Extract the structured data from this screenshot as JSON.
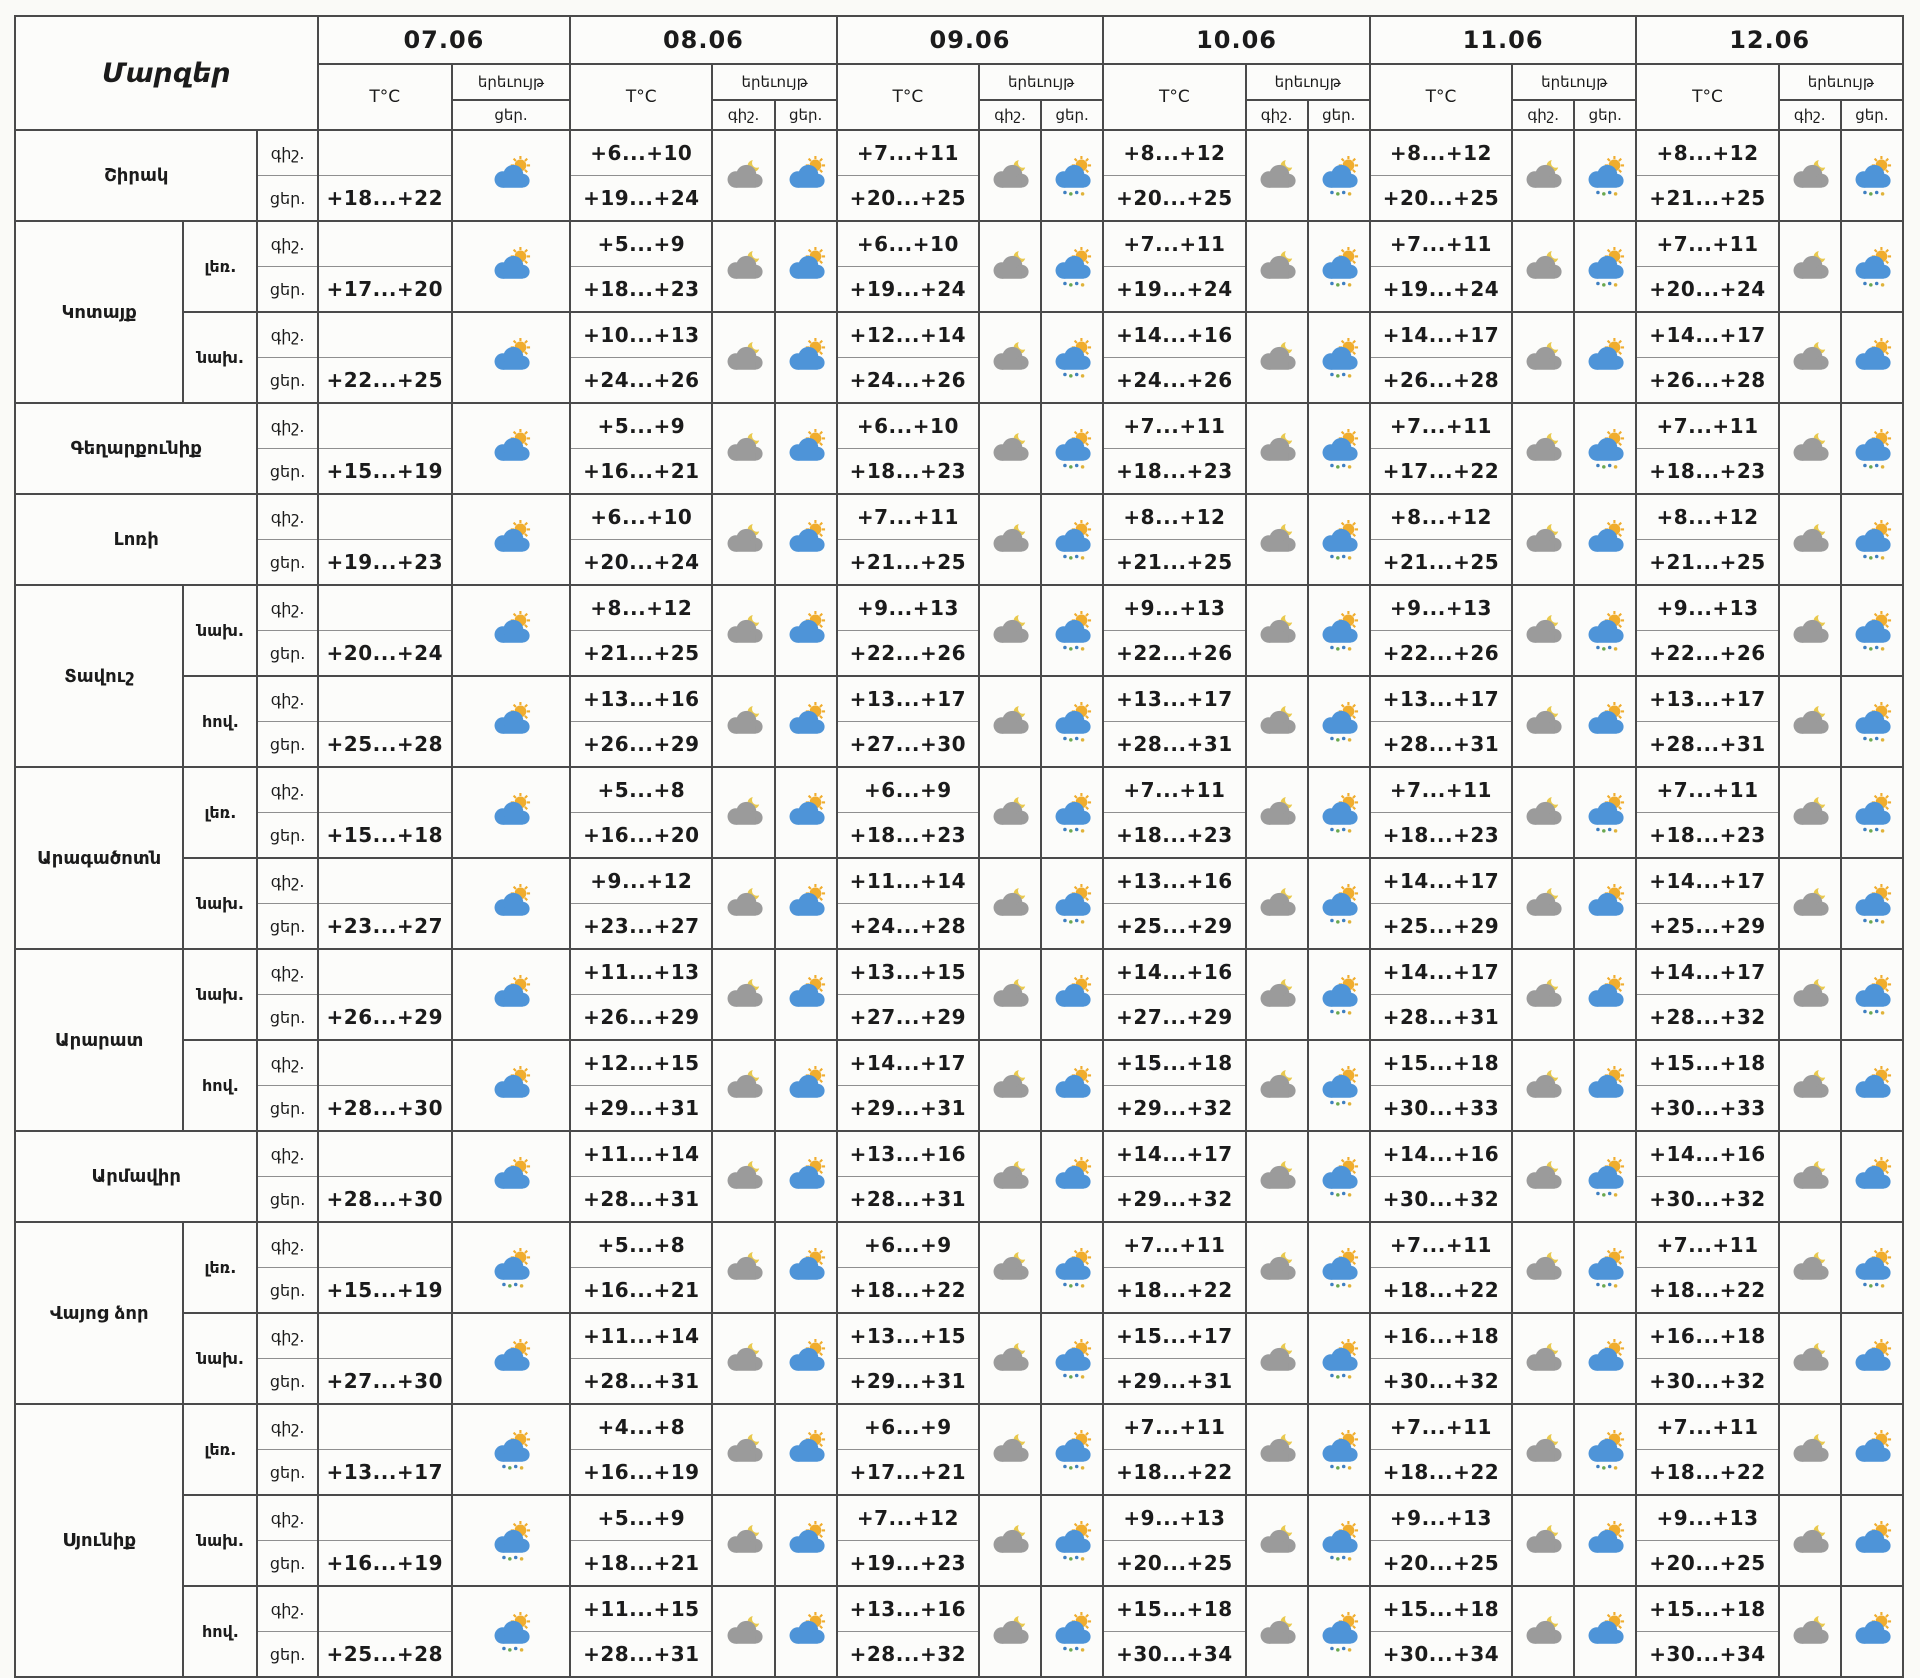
{
  "colors": {
    "page_bg": "#fafaf7",
    "cell_bg": "#fcfcfa",
    "border": "#4a4a4a",
    "inner_border": "#8f8f8f",
    "text": "#1b1b1b",
    "sun": "#f0ad2e",
    "moon": "#e9c94e",
    "cloud_day": "#4e94d8",
    "cloud_night": "#9b9b9b",
    "rain_blue": "#3e7fc1",
    "rain_green": "#6aa84f",
    "rain_yellow": "#e0b33a"
  },
  "chart_data": {
    "type": "table",
    "title": "Մարզեր",
    "temp_header": "T°C",
    "phenomenon_header": "երեւույթ",
    "night_label": "գիշ.",
    "day_label": "ցեր.",
    "dates": [
      "07.06",
      "08.06",
      "09.06",
      "10.06",
      "11.06",
      "12.06"
    ],
    "icon_legend": {
      "sun-cloud": "partly cloudy day (sun behind blue cloud)",
      "sun-cloud-rain": "partly cloudy day with rain showers",
      "moon-cloud": "partly cloudy night (moon behind grey cloud)"
    },
    "regions": [
      {
        "name": "Շիրակ",
        "rows": [
          {
            "sub": "",
            "night": [
              "",
              "+6...+10",
              "+7...+11",
              "+8...+12",
              "+8...+12",
              "+8...+12"
            ],
            "day": [
              "+18...+22",
              "+19...+24",
              "+20...+25",
              "+20...+25",
              "+20...+25",
              "+21...+25"
            ],
            "icons_night": [
              "moon-cloud",
              "moon-cloud",
              "moon-cloud",
              "moon-cloud",
              "moon-cloud"
            ],
            "icons_day": [
              "sun-cloud",
              "sun-cloud",
              "sun-cloud-rain",
              "sun-cloud-rain",
              "sun-cloud-rain",
              "sun-cloud-rain"
            ]
          }
        ]
      },
      {
        "name": "Կոտայք",
        "rows": [
          {
            "sub": "լեռ.",
            "night": [
              "",
              "+5...+9",
              "+6...+10",
              "+7...+11",
              "+7...+11",
              "+7...+11"
            ],
            "day": [
              "+17...+20",
              "+18...+23",
              "+19...+24",
              "+19...+24",
              "+19...+24",
              "+20...+24"
            ],
            "icons_night": [
              "moon-cloud",
              "moon-cloud",
              "moon-cloud",
              "moon-cloud",
              "moon-cloud"
            ],
            "icons_day": [
              "sun-cloud",
              "sun-cloud",
              "sun-cloud-rain",
              "sun-cloud-rain",
              "sun-cloud-rain",
              "sun-cloud-rain"
            ]
          },
          {
            "sub": "նախ.",
            "night": [
              "",
              "+10...+13",
              "+12...+14",
              "+14...+16",
              "+14...+17",
              "+14...+17"
            ],
            "day": [
              "+22...+25",
              "+24...+26",
              "+24...+26",
              "+24...+26",
              "+26...+28",
              "+26...+28"
            ],
            "icons_night": [
              "moon-cloud",
              "moon-cloud",
              "moon-cloud",
              "moon-cloud",
              "moon-cloud"
            ],
            "icons_day": [
              "sun-cloud",
              "sun-cloud",
              "sun-cloud-rain",
              "sun-cloud-rain",
              "sun-cloud",
              "sun-cloud"
            ]
          }
        ]
      },
      {
        "name": "Գեղարքունիք",
        "rows": [
          {
            "sub": "",
            "night": [
              "",
              "+5...+9",
              "+6...+10",
              "+7...+11",
              "+7...+11",
              "+7...+11"
            ],
            "day": [
              "+15...+19",
              "+16...+21",
              "+18...+23",
              "+18...+23",
              "+17...+22",
              "+18...+23"
            ],
            "icons_night": [
              "moon-cloud",
              "moon-cloud",
              "moon-cloud",
              "moon-cloud",
              "moon-cloud"
            ],
            "icons_day": [
              "sun-cloud",
              "sun-cloud",
              "sun-cloud-rain",
              "sun-cloud-rain",
              "sun-cloud-rain",
              "sun-cloud-rain"
            ]
          }
        ]
      },
      {
        "name": "Լոռի",
        "rows": [
          {
            "sub": "",
            "night": [
              "",
              "+6...+10",
              "+7...+11",
              "+8...+12",
              "+8...+12",
              "+8...+12"
            ],
            "day": [
              "+19...+23",
              "+20...+24",
              "+21...+25",
              "+21...+25",
              "+21...+25",
              "+21...+25"
            ],
            "icons_night": [
              "moon-cloud",
              "moon-cloud",
              "moon-cloud",
              "moon-cloud",
              "moon-cloud"
            ],
            "icons_day": [
              "sun-cloud",
              "sun-cloud",
              "sun-cloud-rain",
              "sun-cloud-rain",
              "sun-cloud",
              "sun-cloud-rain"
            ]
          }
        ]
      },
      {
        "name": "Տավուշ",
        "rows": [
          {
            "sub": "նախ.",
            "night": [
              "",
              "+8...+12",
              "+9...+13",
              "+9...+13",
              "+9...+13",
              "+9...+13"
            ],
            "day": [
              "+20...+24",
              "+21...+25",
              "+22...+26",
              "+22...+26",
              "+22...+26",
              "+22...+26"
            ],
            "icons_night": [
              "moon-cloud",
              "moon-cloud",
              "moon-cloud",
              "moon-cloud",
              "moon-cloud"
            ],
            "icons_day": [
              "sun-cloud",
              "sun-cloud",
              "sun-cloud-rain",
              "sun-cloud-rain",
              "sun-cloud-rain",
              "sun-cloud-rain"
            ]
          },
          {
            "sub": "հով.",
            "night": [
              "",
              "+13...+16",
              "+13...+17",
              "+13...+17",
              "+13...+17",
              "+13...+17"
            ],
            "day": [
              "+25...+28",
              "+26...+29",
              "+27...+30",
              "+28...+31",
              "+28...+31",
              "+28...+31"
            ],
            "icons_night": [
              "moon-cloud",
              "moon-cloud",
              "moon-cloud",
              "moon-cloud",
              "moon-cloud"
            ],
            "icons_day": [
              "sun-cloud",
              "sun-cloud",
              "sun-cloud-rain",
              "sun-cloud-rain",
              "sun-cloud",
              "sun-cloud-rain"
            ]
          }
        ]
      },
      {
        "name": "Արագածոտն",
        "rows": [
          {
            "sub": "լեռ.",
            "night": [
              "",
              "+5...+8",
              "+6...+9",
              "+7...+11",
              "+7...+11",
              "+7...+11"
            ],
            "day": [
              "+15...+18",
              "+16...+20",
              "+18...+23",
              "+18...+23",
              "+18...+23",
              "+18...+23"
            ],
            "icons_night": [
              "moon-cloud",
              "moon-cloud",
              "moon-cloud",
              "moon-cloud",
              "moon-cloud"
            ],
            "icons_day": [
              "sun-cloud",
              "sun-cloud",
              "sun-cloud-rain",
              "sun-cloud-rain",
              "sun-cloud-rain",
              "sun-cloud-rain"
            ]
          },
          {
            "sub": "նախ.",
            "night": [
              "",
              "+9...+12",
              "+11...+14",
              "+13...+16",
              "+14...+17",
              "+14...+17"
            ],
            "day": [
              "+23...+27",
              "+23...+27",
              "+24...+28",
              "+25...+29",
              "+25...+29",
              "+25...+29"
            ],
            "icons_night": [
              "moon-cloud",
              "moon-cloud",
              "moon-cloud",
              "moon-cloud",
              "moon-cloud"
            ],
            "icons_day": [
              "sun-cloud",
              "sun-cloud",
              "sun-cloud-rain",
              "sun-cloud-rain",
              "sun-cloud",
              "sun-cloud-rain"
            ]
          }
        ]
      },
      {
        "name": "Արարատ",
        "rows": [
          {
            "sub": "նախ.",
            "night": [
              "",
              "+11...+13",
              "+13...+15",
              "+14...+16",
              "+14...+17",
              "+14...+17"
            ],
            "day": [
              "+26...+29",
              "+26...+29",
              "+27...+29",
              "+27...+29",
              "+28...+31",
              "+28...+32"
            ],
            "icons_night": [
              "moon-cloud",
              "moon-cloud",
              "moon-cloud",
              "moon-cloud",
              "moon-cloud"
            ],
            "icons_day": [
              "sun-cloud",
              "sun-cloud",
              "sun-cloud",
              "sun-cloud-rain",
              "sun-cloud",
              "sun-cloud-rain"
            ]
          },
          {
            "sub": "հով.",
            "night": [
              "",
              "+12...+15",
              "+14...+17",
              "+15...+18",
              "+15...+18",
              "+15...+18"
            ],
            "day": [
              "+28...+30",
              "+29...+31",
              "+29...+31",
              "+29...+32",
              "+30...+33",
              "+30...+33"
            ],
            "icons_night": [
              "moon-cloud",
              "moon-cloud",
              "moon-cloud",
              "moon-cloud",
              "moon-cloud"
            ],
            "icons_day": [
              "sun-cloud",
              "sun-cloud",
              "sun-cloud",
              "sun-cloud-rain",
              "sun-cloud",
              "sun-cloud"
            ]
          }
        ]
      },
      {
        "name": "Արմավիր",
        "rows": [
          {
            "sub": "",
            "night": [
              "",
              "+11...+14",
              "+13...+16",
              "+14...+17",
              "+14...+16",
              "+14...+16"
            ],
            "day": [
              "+28...+30",
              "+28...+31",
              "+28...+31",
              "+29...+32",
              "+30...+32",
              "+30...+32"
            ],
            "icons_night": [
              "moon-cloud",
              "moon-cloud",
              "moon-cloud",
              "moon-cloud",
              "moon-cloud"
            ],
            "icons_day": [
              "sun-cloud",
              "sun-cloud",
              "sun-cloud",
              "sun-cloud-rain",
              "sun-cloud-rain",
              "sun-cloud"
            ]
          }
        ]
      },
      {
        "name": "Վայոց ձոր",
        "rows": [
          {
            "sub": "լեռ.",
            "night": [
              "",
              "+5...+8",
              "+6...+9",
              "+7...+11",
              "+7...+11",
              "+7...+11"
            ],
            "day": [
              "+15...+19",
              "+16...+21",
              "+18...+22",
              "+18...+22",
              "+18...+22",
              "+18...+22"
            ],
            "icons_night": [
              "moon-cloud",
              "moon-cloud",
              "moon-cloud",
              "moon-cloud",
              "moon-cloud"
            ],
            "icons_day": [
              "sun-cloud-rain",
              "sun-cloud",
              "sun-cloud-rain",
              "sun-cloud-rain",
              "sun-cloud-rain",
              "sun-cloud-rain"
            ]
          },
          {
            "sub": "նախ.",
            "night": [
              "",
              "+11...+14",
              "+13...+15",
              "+15...+17",
              "+16...+18",
              "+16...+18"
            ],
            "day": [
              "+27...+30",
              "+28...+31",
              "+29...+31",
              "+29...+31",
              "+30...+32",
              "+30...+32"
            ],
            "icons_night": [
              "moon-cloud",
              "moon-cloud",
              "moon-cloud",
              "moon-cloud",
              "moon-cloud"
            ],
            "icons_day": [
              "sun-cloud",
              "sun-cloud",
              "sun-cloud-rain",
              "sun-cloud-rain",
              "sun-cloud",
              "sun-cloud"
            ]
          }
        ]
      },
      {
        "name": "Սյունիք",
        "rows": [
          {
            "sub": "լեռ.",
            "night": [
              "",
              "+4...+8",
              "+6...+9",
              "+7...+11",
              "+7...+11",
              "+7...+11"
            ],
            "day": [
              "+13...+17",
              "+16...+19",
              "+17...+21",
              "+18...+22",
              "+18...+22",
              "+18...+22"
            ],
            "icons_night": [
              "moon-cloud",
              "moon-cloud",
              "moon-cloud",
              "moon-cloud",
              "moon-cloud"
            ],
            "icons_day": [
              "sun-cloud-rain",
              "sun-cloud",
              "sun-cloud-rain",
              "sun-cloud-rain",
              "sun-cloud-rain",
              "sun-cloud"
            ]
          },
          {
            "sub": "նախ.",
            "night": [
              "",
              "+5...+9",
              "+7...+12",
              "+9...+13",
              "+9...+13",
              "+9...+13"
            ],
            "day": [
              "+16...+19",
              "+18...+21",
              "+19...+23",
              "+20...+25",
              "+20...+25",
              "+20...+25"
            ],
            "icons_night": [
              "moon-cloud",
              "moon-cloud",
              "moon-cloud",
              "moon-cloud",
              "moon-cloud"
            ],
            "icons_day": [
              "sun-cloud-rain",
              "sun-cloud",
              "sun-cloud-rain",
              "sun-cloud-rain",
              "sun-cloud",
              "sun-cloud"
            ]
          },
          {
            "sub": "հով.",
            "night": [
              "",
              "+11...+15",
              "+13...+16",
              "+15...+18",
              "+15...+18",
              "+15...+18"
            ],
            "day": [
              "+25...+28",
              "+28...+31",
              "+28...+32",
              "+30...+34",
              "+30...+34",
              "+30...+34"
            ],
            "icons_night": [
              "moon-cloud",
              "moon-cloud",
              "moon-cloud",
              "moon-cloud",
              "moon-cloud"
            ],
            "icons_day": [
              "sun-cloud-rain",
              "sun-cloud",
              "sun-cloud-rain",
              "sun-cloud-rain",
              "sun-cloud",
              "sun-cloud"
            ]
          }
        ]
      }
    ]
  }
}
